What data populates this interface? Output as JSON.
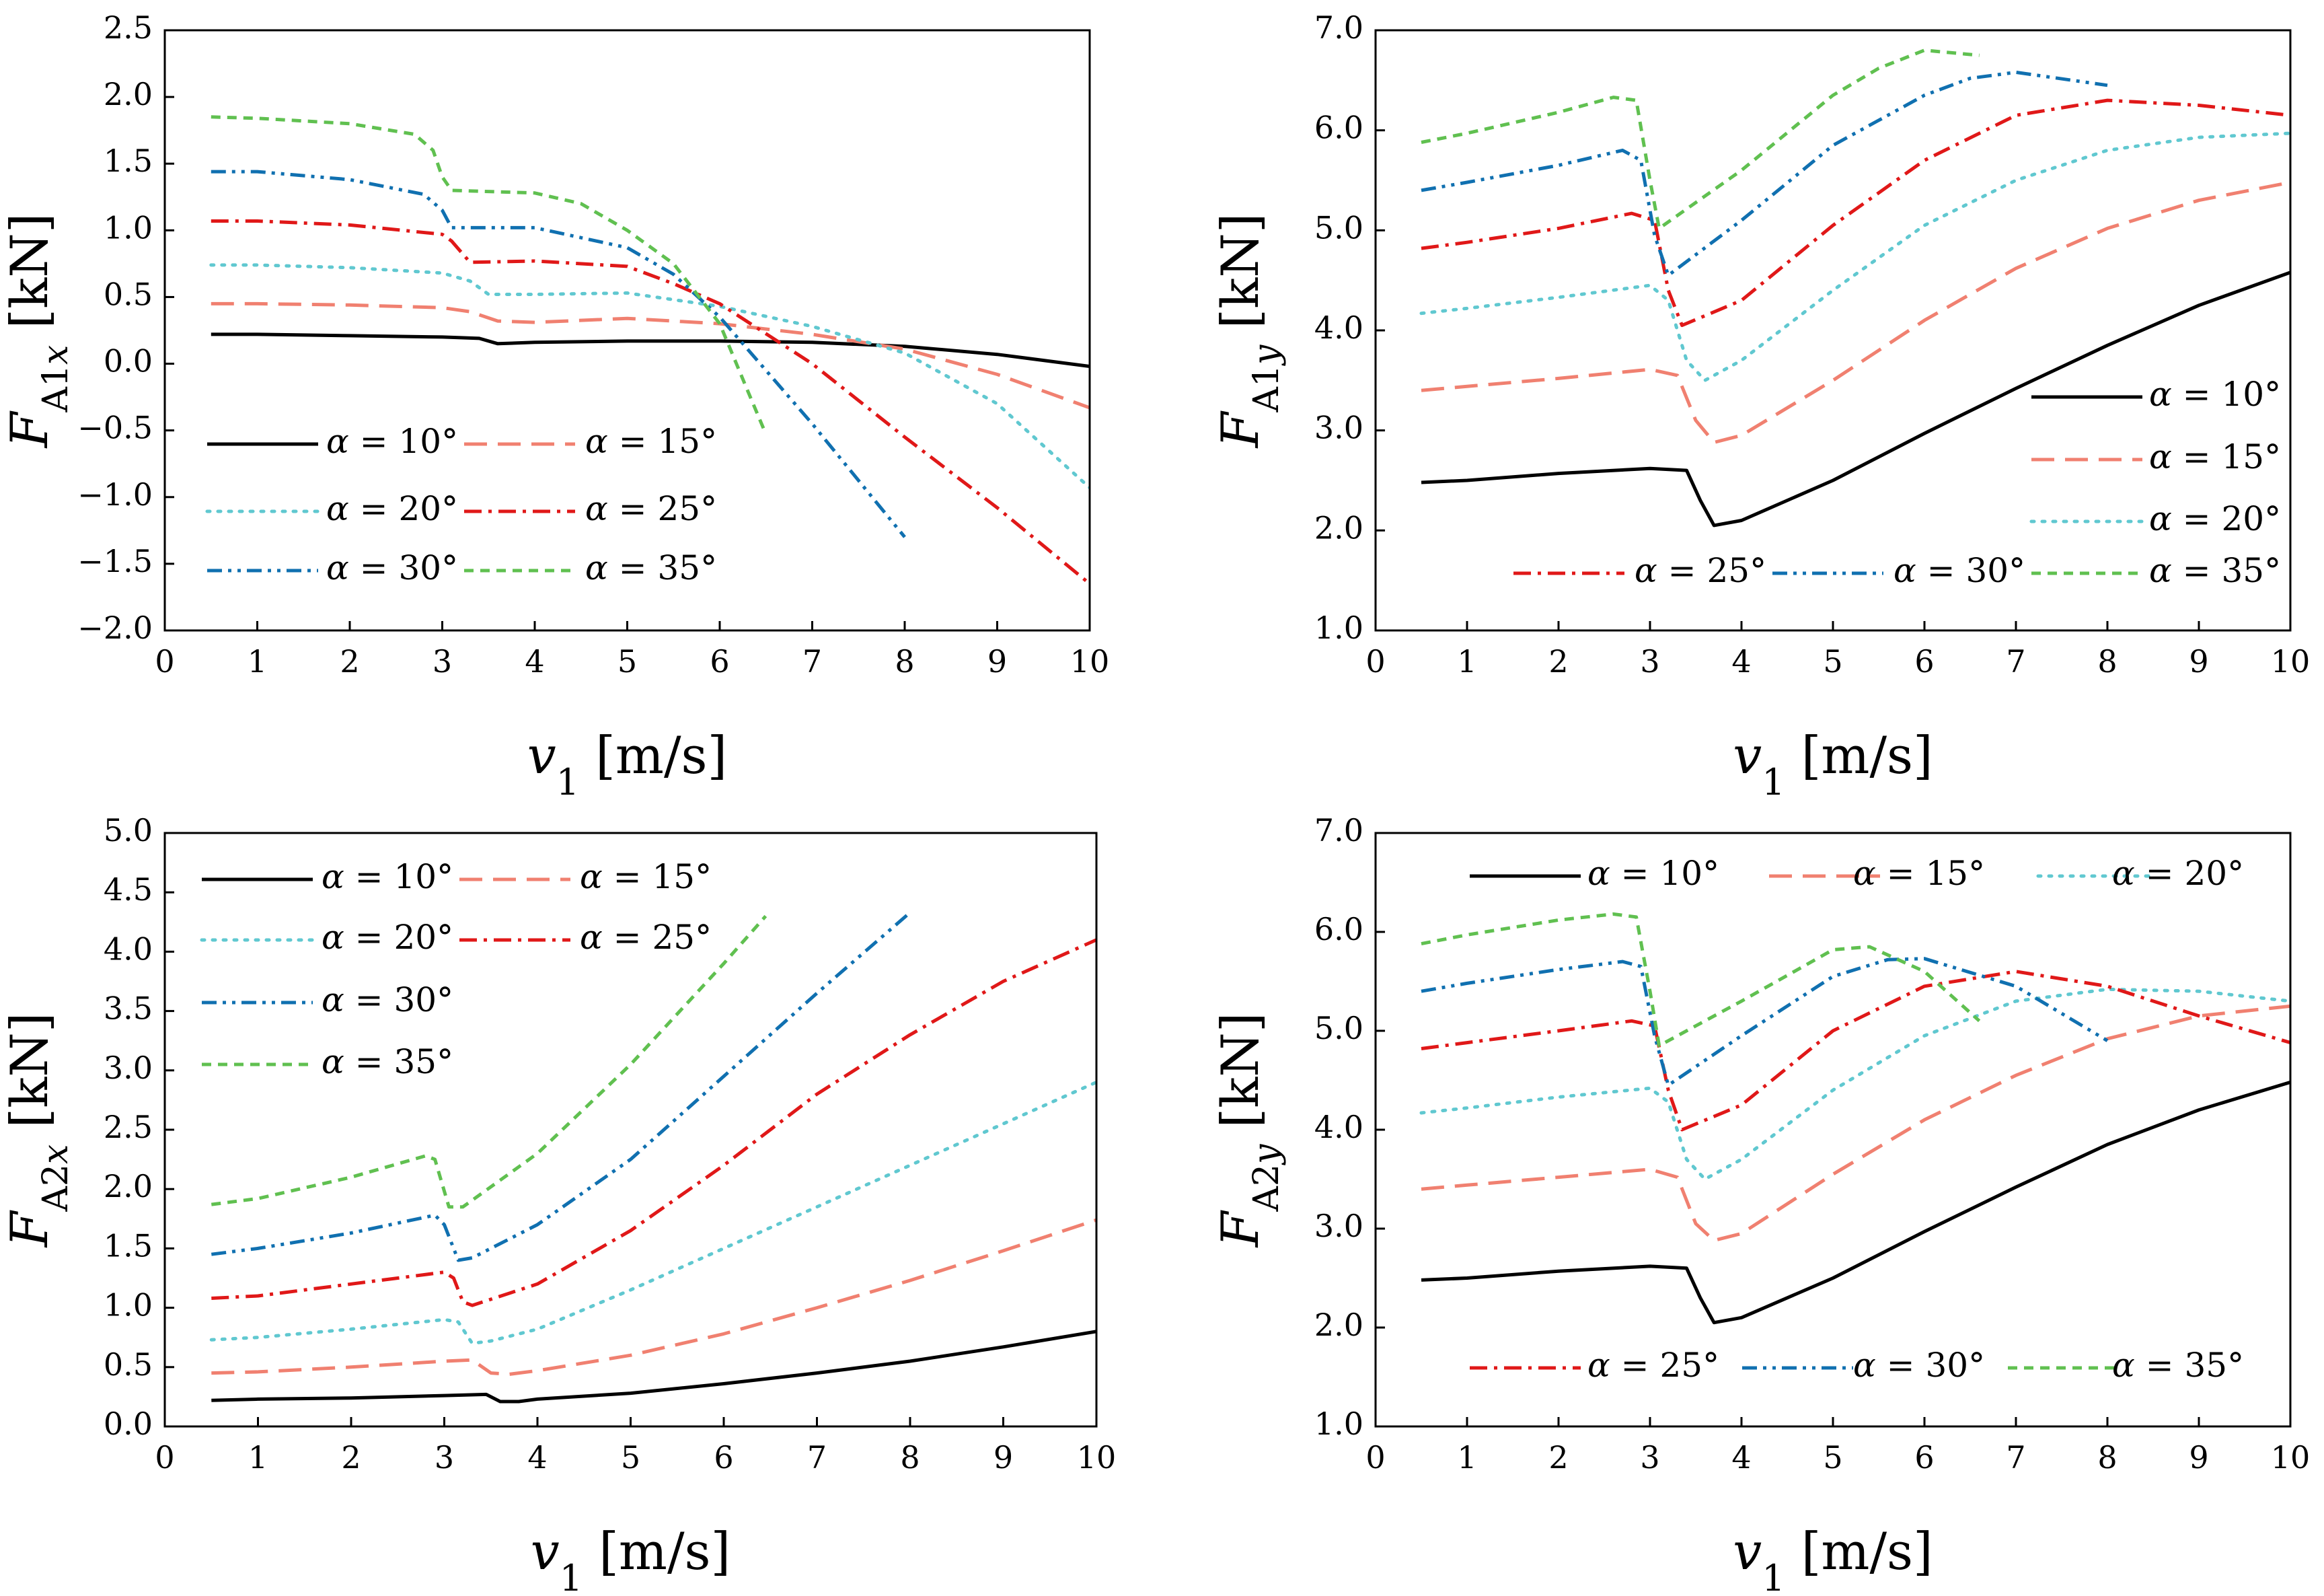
{
  "figure_title": "",
  "series_styles": [
    {
      "name": "α = 10°",
      "color": "#000000",
      "dash": "solid"
    },
    {
      "name": "α = 15°",
      "color": "#f08070",
      "dash": "longdash"
    },
    {
      "name": "α = 20°",
      "color": "#60c8d0",
      "dash": "dot"
    },
    {
      "name": "α = 25°",
      "color": "#e01818",
      "dash": "dashdot"
    },
    {
      "name": "α = 30°",
      "color": "#1070b0",
      "dash": "dashdotdot"
    },
    {
      "name": "α = 35°",
      "color": "#60c050",
      "dash": "shortdash"
    }
  ],
  "chart_data": [
    {
      "type": "line",
      "title": "",
      "xlabel": "v1 [m/s]",
      "ylabel": "FA1x [kN]",
      "ylabel_parts": {
        "main": "F",
        "sub": "A1",
        "sub_it": "x",
        "unit": " [kN]"
      },
      "xlim": [
        0,
        10
      ],
      "ylim": [
        -2.0,
        2.5
      ],
      "xticks": [
        "0",
        "1",
        "2",
        "3",
        "4",
        "5",
        "6",
        "7",
        "8",
        "9",
        "10"
      ],
      "yticks": [
        "−2.0",
        "−1.5",
        "−1.0",
        "−0.5",
        "0.0",
        "0.5",
        "1.0",
        "1.5",
        "2.0",
        "2.5"
      ],
      "yticks_values": [
        -2.0,
        -1.5,
        -1.0,
        -0.5,
        0.0,
        0.5,
        1.0,
        1.5,
        2.0,
        2.5
      ],
      "legend": "lower-left",
      "series": [
        {
          "name": "α = 10°",
          "x": [
            0.5,
            1,
            2,
            3,
            3.4,
            3.6,
            4,
            5,
            6,
            7,
            8,
            9,
            10
          ],
          "values": [
            0.22,
            0.22,
            0.21,
            0.2,
            0.19,
            0.15,
            0.16,
            0.17,
            0.17,
            0.16,
            0.13,
            0.07,
            -0.02
          ]
        },
        {
          "name": "α = 15°",
          "x": [
            0.5,
            1,
            2,
            3,
            3.3,
            3.6,
            4,
            5,
            6,
            7,
            8,
            9,
            10
          ],
          "values": [
            0.45,
            0.45,
            0.44,
            0.42,
            0.39,
            0.32,
            0.31,
            0.34,
            0.3,
            0.22,
            0.11,
            -0.08,
            -0.33
          ]
        },
        {
          "name": "α = 20°",
          "x": [
            0.5,
            1,
            2,
            3,
            3.3,
            3.5,
            4,
            5,
            6,
            7,
            8,
            9,
            10
          ],
          "values": [
            0.74,
            0.74,
            0.72,
            0.68,
            0.62,
            0.52,
            0.52,
            0.53,
            0.43,
            0.28,
            0.08,
            -0.3,
            -0.93
          ]
        },
        {
          "name": "α = 25°",
          "x": [
            0.5,
            1,
            2,
            3,
            3.1,
            3.3,
            4,
            5,
            5.5,
            6,
            7,
            8,
            9,
            10
          ],
          "values": [
            1.07,
            1.07,
            1.04,
            0.97,
            0.92,
            0.76,
            0.77,
            0.73,
            0.6,
            0.45,
            0.0,
            -0.55,
            -1.08,
            -1.65
          ]
        },
        {
          "name": "α = 30°",
          "x": [
            0.5,
            1,
            2,
            2.8,
            3.0,
            3.1,
            4,
            5,
            5.5,
            6,
            7,
            8
          ],
          "values": [
            1.44,
            1.44,
            1.38,
            1.27,
            1.15,
            1.02,
            1.02,
            0.87,
            0.67,
            0.35,
            -0.45,
            -1.3
          ]
        },
        {
          "name": "α = 35°",
          "x": [
            0.5,
            1,
            2,
            2.7,
            2.9,
            3.0,
            3.1,
            4,
            4.5,
            5,
            5.5,
            6,
            6.3,
            6.5
          ],
          "values": [
            1.85,
            1.84,
            1.8,
            1.72,
            1.6,
            1.4,
            1.3,
            1.28,
            1.2,
            1.0,
            0.75,
            0.3,
            -0.2,
            -0.53
          ]
        }
      ]
    },
    {
      "type": "line",
      "title": "",
      "xlabel": "v1 [m/s]",
      "ylabel": "FA1y [kN]",
      "ylabel_parts": {
        "main": "F",
        "sub": "A1",
        "sub_it": "y",
        "unit": " [kN]"
      },
      "xlim": [
        0,
        10
      ],
      "ylim": [
        1.0,
        7.0
      ],
      "xticks": [
        "0",
        "1",
        "2",
        "3",
        "4",
        "5",
        "6",
        "7",
        "8",
        "9",
        "10"
      ],
      "yticks": [
        "1.0",
        "2.0",
        "3.0",
        "4.0",
        "5.0",
        "6.0",
        "7.0"
      ],
      "yticks_values": [
        1.0,
        2.0,
        3.0,
        4.0,
        5.0,
        6.0,
        7.0
      ],
      "legend": "bottom-right",
      "series": [
        {
          "name": "α = 10°",
          "x": [
            0.5,
            1,
            2,
            3,
            3.4,
            3.55,
            3.7,
            4,
            5,
            6,
            7,
            8,
            9,
            10
          ],
          "values": [
            2.48,
            2.5,
            2.57,
            2.62,
            2.6,
            2.3,
            2.05,
            2.1,
            2.5,
            2.97,
            3.42,
            3.85,
            4.25,
            4.58
          ]
        },
        {
          "name": "α = 15°",
          "x": [
            0.5,
            1,
            2,
            3,
            3.3,
            3.5,
            3.7,
            4,
            5,
            6,
            7,
            8,
            9,
            10
          ],
          "values": [
            3.4,
            3.44,
            3.52,
            3.61,
            3.55,
            3.1,
            2.88,
            2.95,
            3.5,
            4.1,
            4.62,
            5.02,
            5.3,
            5.48
          ]
        },
        {
          "name": "α = 20°",
          "x": [
            0.5,
            1,
            2,
            3,
            3.2,
            3.4,
            3.6,
            4,
            5,
            6,
            7,
            8,
            9,
            10
          ],
          "values": [
            4.17,
            4.22,
            4.33,
            4.45,
            4.3,
            3.7,
            3.5,
            3.7,
            4.4,
            5.05,
            5.5,
            5.8,
            5.93,
            5.97
          ]
        },
        {
          "name": "α = 25°",
          "x": [
            0.5,
            1,
            2,
            2.8,
            3.05,
            3.2,
            3.35,
            4,
            5,
            6,
            7,
            8,
            9,
            10
          ],
          "values": [
            4.82,
            4.88,
            5.02,
            5.17,
            5.1,
            4.4,
            4.05,
            4.3,
            5.05,
            5.7,
            6.15,
            6.3,
            6.25,
            6.15
          ]
        },
        {
          "name": "α = 30°",
          "x": [
            0.5,
            1,
            2,
            2.7,
            2.9,
            3.05,
            3.2,
            4,
            5,
            6,
            6.5,
            7,
            8
          ],
          "values": [
            5.4,
            5.48,
            5.65,
            5.8,
            5.7,
            4.95,
            4.55,
            5.1,
            5.85,
            6.35,
            6.52,
            6.58,
            6.45
          ]
        },
        {
          "name": "α = 35°",
          "x": [
            0.5,
            1,
            2,
            2.6,
            2.85,
            3.0,
            3.1,
            4,
            5,
            5.5,
            6,
            6.6
          ],
          "values": [
            5.88,
            5.97,
            6.18,
            6.33,
            6.3,
            5.5,
            5.02,
            5.6,
            6.35,
            6.62,
            6.8,
            6.75
          ]
        }
      ]
    },
    {
      "type": "line",
      "title": "",
      "xlabel": "v1 [m/s]",
      "ylabel": "FA2x [kN]",
      "ylabel_parts": {
        "main": "F",
        "sub": "A2",
        "sub_it": "x",
        "unit": " [kN]"
      },
      "xlim": [
        0,
        10
      ],
      "ylim": [
        0.0,
        5.0
      ],
      "xticks": [
        "0",
        "1",
        "2",
        "3",
        "4",
        "5",
        "6",
        "7",
        "8",
        "9",
        "10"
      ],
      "yticks": [
        "0.0",
        "0.5",
        "1.0",
        "1.5",
        "2.0",
        "2.5",
        "3.0",
        "3.5",
        "4.0",
        "4.5",
        "5.0"
      ],
      "yticks_values": [
        0.0,
        0.5,
        1.0,
        1.5,
        2.0,
        2.5,
        3.0,
        3.5,
        4.0,
        4.5,
        5.0
      ],
      "legend": "top-left",
      "series": [
        {
          "name": "α = 10°",
          "x": [
            0.5,
            1,
            2,
            3,
            3.45,
            3.6,
            3.8,
            4,
            5,
            6,
            7,
            8,
            9,
            10
          ],
          "values": [
            0.22,
            0.23,
            0.24,
            0.26,
            0.27,
            0.21,
            0.21,
            0.23,
            0.28,
            0.36,
            0.45,
            0.55,
            0.67,
            0.8
          ]
        },
        {
          "name": "α = 15°",
          "x": [
            0.5,
            1,
            2,
            3,
            3.3,
            3.5,
            3.7,
            4,
            5,
            6,
            7,
            8,
            9,
            10
          ],
          "values": [
            0.45,
            0.46,
            0.5,
            0.55,
            0.56,
            0.45,
            0.44,
            0.47,
            0.6,
            0.78,
            1.0,
            1.23,
            1.48,
            1.74
          ]
        },
        {
          "name": "α = 20°",
          "x": [
            0.5,
            1,
            2,
            3,
            3.15,
            3.3,
            3.5,
            4,
            5,
            6,
            7,
            8,
            9,
            10
          ],
          "values": [
            0.73,
            0.75,
            0.82,
            0.9,
            0.88,
            0.7,
            0.72,
            0.82,
            1.15,
            1.5,
            1.85,
            2.2,
            2.55,
            2.9
          ]
        },
        {
          "name": "α = 25°",
          "x": [
            0.5,
            1,
            2,
            3,
            3.1,
            3.2,
            3.3,
            4,
            5,
            6,
            7,
            8,
            9,
            10
          ],
          "values": [
            1.08,
            1.1,
            1.2,
            1.3,
            1.25,
            1.05,
            1.02,
            1.2,
            1.65,
            2.2,
            2.8,
            3.3,
            3.75,
            4.1
          ]
        },
        {
          "name": "α = 30°",
          "x": [
            0.5,
            1,
            2,
            2.9,
            3.0,
            3.15,
            3.3,
            4,
            5,
            6,
            7,
            8
          ],
          "values": [
            1.45,
            1.5,
            1.63,
            1.78,
            1.7,
            1.4,
            1.42,
            1.7,
            2.25,
            2.95,
            3.65,
            4.33
          ]
        },
        {
          "name": "α = 35°",
          "x": [
            0.5,
            1,
            2,
            2.8,
            2.9,
            3.05,
            3.2,
            4,
            5,
            6,
            6.45
          ],
          "values": [
            1.87,
            1.92,
            2.1,
            2.28,
            2.25,
            1.85,
            1.85,
            2.3,
            3.05,
            3.9,
            4.3
          ]
        }
      ]
    },
    {
      "type": "line",
      "title": "",
      "xlabel": "v1 [m/s]",
      "ylabel": "FA2y [kN]",
      "ylabel_parts": {
        "main": "F",
        "sub": "A2",
        "sub_it": "y",
        "unit": " [kN]"
      },
      "xlim": [
        0,
        10
      ],
      "ylim": [
        1.0,
        7.0
      ],
      "xticks": [
        "0",
        "1",
        "2",
        "3",
        "4",
        "5",
        "6",
        "7",
        "8",
        "9",
        "10"
      ],
      "yticks": [
        "1.0",
        "2.0",
        "3.0",
        "4.0",
        "5.0",
        "6.0",
        "7.0"
      ],
      "yticks_values": [
        1.0,
        2.0,
        3.0,
        4.0,
        5.0,
        6.0,
        7.0
      ],
      "legend": "top-and-bottom",
      "series": [
        {
          "name": "α = 10°",
          "x": [
            0.5,
            1,
            2,
            3,
            3.4,
            3.55,
            3.7,
            4,
            5,
            6,
            7,
            8,
            9,
            10
          ],
          "values": [
            2.48,
            2.5,
            2.57,
            2.62,
            2.6,
            2.3,
            2.05,
            2.1,
            2.5,
            2.97,
            3.42,
            3.85,
            4.2,
            4.48
          ]
        },
        {
          "name": "α = 15°",
          "x": [
            0.5,
            1,
            2,
            3,
            3.3,
            3.5,
            3.7,
            4,
            5,
            6,
            7,
            8,
            9,
            10
          ],
          "values": [
            3.4,
            3.44,
            3.52,
            3.6,
            3.52,
            3.05,
            2.88,
            2.95,
            3.55,
            4.1,
            4.55,
            4.92,
            5.15,
            5.25
          ]
        },
        {
          "name": "α = 20°",
          "x": [
            0.5,
            1,
            2,
            3,
            3.2,
            3.4,
            3.6,
            4,
            5,
            6,
            7,
            8,
            9,
            10
          ],
          "values": [
            4.17,
            4.22,
            4.33,
            4.42,
            4.28,
            3.7,
            3.5,
            3.7,
            4.4,
            4.95,
            5.3,
            5.42,
            5.4,
            5.3
          ]
        },
        {
          "name": "α = 25°",
          "x": [
            0.5,
            1,
            2,
            2.8,
            3.05,
            3.2,
            3.35,
            4,
            5,
            6,
            7,
            8,
            9,
            10
          ],
          "values": [
            4.82,
            4.88,
            5.0,
            5.1,
            5.05,
            4.4,
            4.0,
            4.25,
            5.0,
            5.45,
            5.6,
            5.45,
            5.15,
            4.88
          ]
        },
        {
          "name": "α = 30°",
          "x": [
            0.5,
            1,
            2,
            2.7,
            2.9,
            3.05,
            3.2,
            4,
            5,
            5.6,
            6,
            7,
            8
          ],
          "values": [
            5.4,
            5.48,
            5.62,
            5.7,
            5.65,
            4.95,
            4.45,
            4.95,
            5.55,
            5.72,
            5.73,
            5.45,
            4.9
          ]
        },
        {
          "name": "α = 35°",
          "x": [
            0.5,
            1,
            2,
            2.6,
            2.85,
            3.0,
            3.1,
            4,
            5,
            5.4,
            6,
            6.6
          ],
          "values": [
            5.88,
            5.97,
            6.12,
            6.18,
            6.15,
            5.4,
            4.85,
            5.3,
            5.82,
            5.85,
            5.6,
            5.1
          ]
        }
      ]
    }
  ]
}
